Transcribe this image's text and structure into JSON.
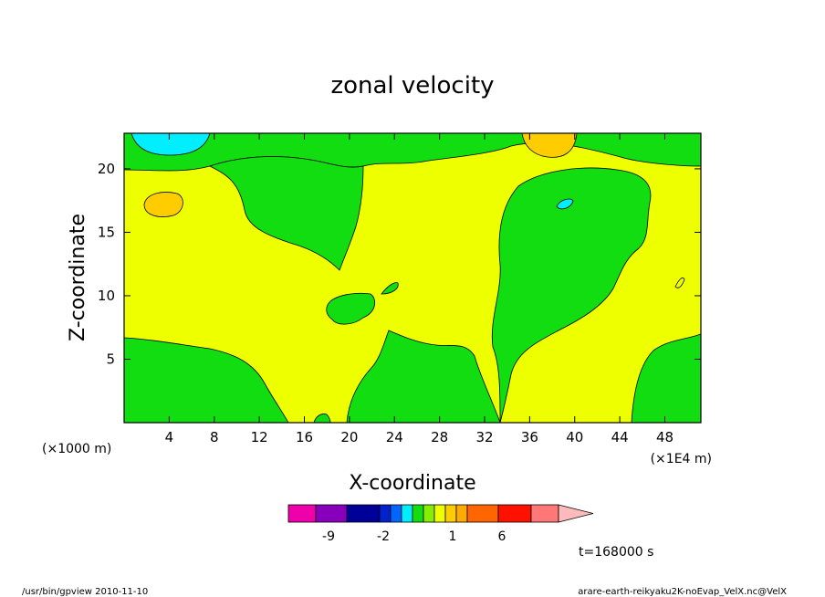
{
  "chart_data": {
    "type": "contour",
    "title": "zonal velocity",
    "xlabel": "X-coordinate",
    "ylabel": "Z-coordinate",
    "x_unit_left": "(×1000 m)",
    "x_unit_right": "(×1E4 m)",
    "xlim": [
      0,
      51.2
    ],
    "ylim": [
      0,
      22.8
    ],
    "x_ticks": [
      4,
      8,
      12,
      16,
      20,
      24,
      28,
      32,
      36,
      40,
      44,
      48
    ],
    "y_ticks": [
      5,
      10,
      15,
      20
    ],
    "grid": false,
    "field_colors": {
      "background": "#eeff00",
      "positive_small": "#eeff00",
      "negative_small": "#11dd11",
      "positive_medium": "#ffcc00",
      "negative_medium": "#00eeff"
    },
    "colorbar": {
      "colors": [
        "#ee00aa",
        "#8800bb",
        "#000099",
        "#0022cc",
        "#0066ff",
        "#00eeff",
        "#11dd11",
        "#88ee00",
        "#eeff00",
        "#ffcc00",
        "#ffaa00",
        "#ff6600",
        "#ff1100",
        "#ff7777",
        "#ffbbbb"
      ],
      "labels": [
        "-9",
        "-2",
        "1",
        "6"
      ]
    },
    "time_label": "t=168000 s"
  },
  "footer": {
    "left": "/usr/bin/gpview   2010-11-10",
    "right": "arare-earth-reikyaku2K-noEvap_VelX.nc@VelX"
  }
}
